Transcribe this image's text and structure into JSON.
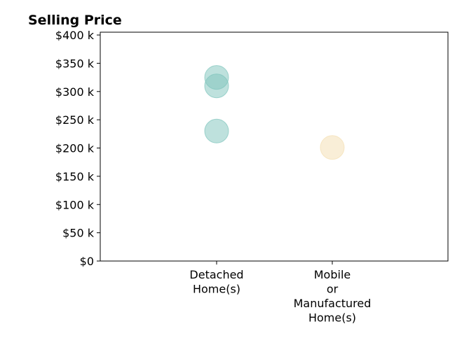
{
  "chart_data": {
    "type": "scatter",
    "title": "Selling Price",
    "xlabel": "",
    "ylabel": "",
    "categories": [
      [
        "Detached",
        "Home(s)"
      ],
      [
        "Mobile",
        "or",
        "Manufactured",
        "Home(s)"
      ]
    ],
    "ylim": [
      0,
      405000
    ],
    "y_ticks": [
      {
        "value": 0,
        "label": "$0"
      },
      {
        "value": 50000,
        "label": "$50 k"
      },
      {
        "value": 100000,
        "label": "$100 k"
      },
      {
        "value": 150000,
        "label": "$150 k"
      },
      {
        "value": 200000,
        "label": "$200 k"
      },
      {
        "value": 250000,
        "label": "$250 k"
      },
      {
        "value": 300000,
        "label": "$300 k"
      },
      {
        "value": 350000,
        "label": "$350 k"
      },
      {
        "value": 400000,
        "label": "$400 k"
      }
    ],
    "grid": false,
    "legend": "none",
    "points": [
      {
        "category": 0,
        "y": 325000,
        "color": "#7ec4bc"
      },
      {
        "category": 0,
        "y": 310000,
        "color": "#7ec4bc"
      },
      {
        "category": 0,
        "y": 230000,
        "color": "#7ec4bc"
      },
      {
        "category": 1,
        "y": 201000,
        "color": "#f3deb0"
      }
    ],
    "marker_opacity": 0.5
  }
}
